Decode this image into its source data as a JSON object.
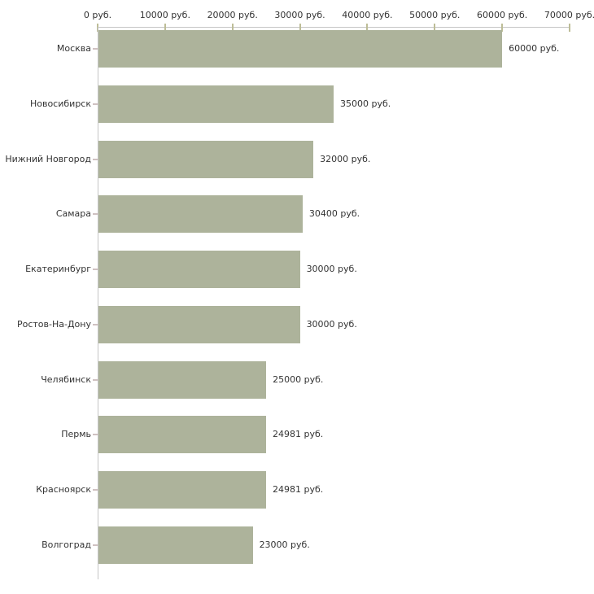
{
  "chart_data": {
    "type": "bar",
    "orientation": "horizontal",
    "title": "",
    "xlabel": "",
    "ylabel": "",
    "unit": "руб.",
    "categories": [
      "Москва",
      "Новосибирск",
      "Нижний Новгород",
      "Самара",
      "Екатеринбург",
      "Ростов-На-Дону",
      "Челябинск",
      "Пермь",
      "Красноярск",
      "Волгоград"
    ],
    "values": [
      60000,
      35000,
      32000,
      30400,
      30000,
      30000,
      25000,
      24981,
      24981,
      23000
    ],
    "bar_labels": [
      "60000 руб.",
      "35000 руб.",
      "32000 руб.",
      "30400 руб.",
      "30000 руб.",
      "30000 руб.",
      "25000 руб.",
      "24981 руб.",
      "24981 руб.",
      "23000 руб."
    ],
    "x_axis": {
      "position": "top",
      "range": [
        0,
        70000
      ],
      "ticks": [
        0,
        10000,
        20000,
        30000,
        40000,
        50000,
        60000,
        70000
      ],
      "tick_labels": [
        "0 руб.",
        "10000 руб.",
        "20000 руб.",
        "30000 руб.",
        "40000 руб.",
        "50000 руб.",
        "60000 руб.",
        "70000 руб."
      ]
    },
    "legend": null,
    "grid": false,
    "colors": {
      "bar": "#adb39b",
      "axis_line": "#c5c5c5",
      "x_tick_mark": "#bdbd97",
      "category_tick_mark": "#cfc1c1",
      "text": "#333333",
      "background": "#ffffff"
    }
  }
}
